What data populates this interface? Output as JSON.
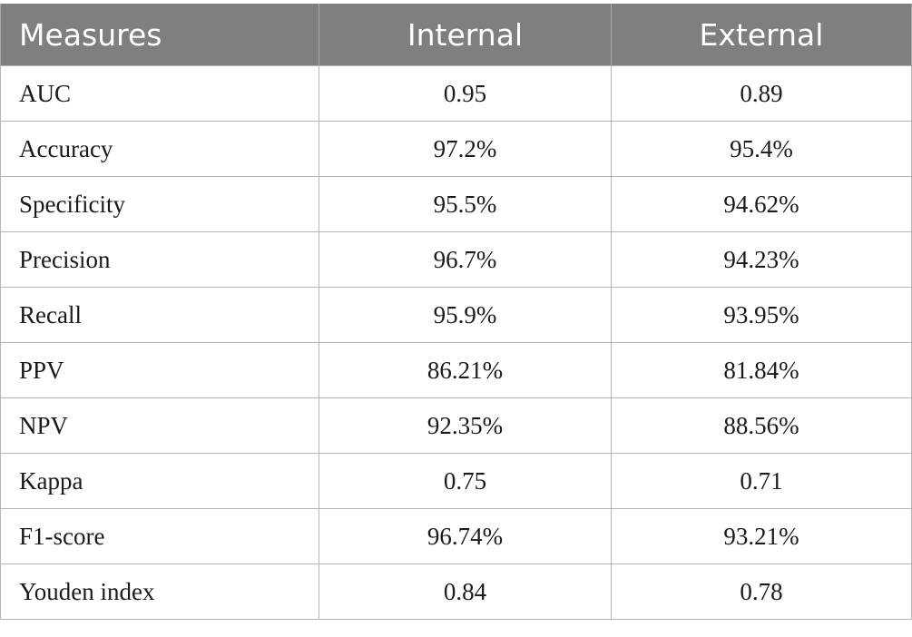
{
  "table": {
    "headers": [
      "Measures",
      "Internal",
      "External"
    ],
    "rows": [
      {
        "measure": "AUC",
        "internal": "0.95",
        "external": "0.89"
      },
      {
        "measure": "Accuracy",
        "internal": "97.2%",
        "external": "95.4%"
      },
      {
        "measure": "Specificity",
        "internal": "95.5%",
        "external": "94.62%"
      },
      {
        "measure": "Precision",
        "internal": "96.7%",
        "external": "94.23%"
      },
      {
        "measure": "Recall",
        "internal": "95.9%",
        "external": "93.95%"
      },
      {
        "measure": "PPV",
        "internal": "86.21%",
        "external": "81.84%"
      },
      {
        "measure": "NPV",
        "internal": "92.35%",
        "external": "88.56%"
      },
      {
        "measure": "Kappa",
        "internal": "0.75",
        "external": "0.71"
      },
      {
        "measure": "F1-score",
        "internal": "96.74%",
        "external": "93.21%"
      },
      {
        "measure": "Youden index",
        "internal": "0.84",
        "external": "0.78"
      }
    ]
  },
  "colors": {
    "header_background": "#7f7f7e",
    "header_text": "#ffffff",
    "grid_lines": "#b4b4b4",
    "body_text": "#1a1a1a"
  }
}
